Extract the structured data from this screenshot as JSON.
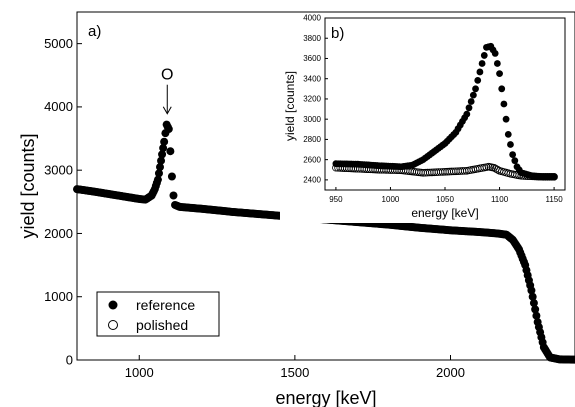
{
  "chart_data": [
    {
      "type": "scatter",
      "panel_label": "a)",
      "xlabel": "energy [keV]",
      "ylabel": "yield [counts]",
      "xlim": [
        800,
        2400
      ],
      "ylim": [
        0,
        5500
      ],
      "xticks": [
        1000,
        1500,
        2000
      ],
      "yticks": [
        0,
        1000,
        2000,
        3000,
        4000,
        5000
      ],
      "annotation": {
        "text": "O",
        "x": 1090,
        "y": 3750
      },
      "legend": {
        "position": "bottom-left",
        "entries": [
          "reference",
          "polished"
        ]
      },
      "series": [
        {
          "name": "reference",
          "marker": "filled-circle",
          "points": [
            [
              800,
              2700
            ],
            [
              850,
              2665
            ],
            [
              900,
              2625
            ],
            [
              950,
              2585
            ],
            [
              1000,
              2545
            ],
            [
              1020,
              2535
            ],
            [
              1040,
              2600
            ],
            [
              1050,
              2700
            ],
            [
              1060,
              2850
            ],
            [
              1070,
              3150
            ],
            [
              1080,
              3450
            ],
            [
              1088,
              3720
            ],
            [
              1095,
              3650
            ],
            [
              1100,
              3300
            ],
            [
              1105,
              2900
            ],
            [
              1110,
              2600
            ],
            [
              1115,
              2450
            ],
            [
              1130,
              2420
            ],
            [
              1200,
              2390
            ],
            [
              1300,
              2340
            ],
            [
              1400,
              2300
            ],
            [
              1500,
              2260
            ],
            [
              1600,
              2220
            ],
            [
              1700,
              2180
            ],
            [
              1800,
              2140
            ],
            [
              1900,
              2090
            ],
            [
              2000,
              2050
            ],
            [
              2100,
              2020
            ],
            [
              2150,
              2000
            ],
            [
              2180,
              1980
            ],
            [
              2200,
              1900
            ],
            [
              2220,
              1750
            ],
            [
              2240,
              1500
            ],
            [
              2260,
              1100
            ],
            [
              2280,
              600
            ],
            [
              2300,
              200
            ],
            [
              2320,
              40
            ],
            [
              2350,
              10
            ],
            [
              2400,
              5
            ]
          ]
        },
        {
          "name": "polished",
          "marker": "open-circle",
          "points": []
        }
      ]
    },
    {
      "type": "scatter",
      "panel_label": "b)",
      "xlabel": "energy [keV]",
      "ylabel": "yield [counts]",
      "xlim": [
        940,
        1160
      ],
      "ylim": [
        2300,
        4000
      ],
      "xticks": [
        950,
        1000,
        1050,
        1100,
        1150
      ],
      "yticks": [
        2400,
        2600,
        2800,
        3000,
        3200,
        3400,
        3600,
        3800,
        4000
      ],
      "series": [
        {
          "name": "reference",
          "marker": "filled-circle",
          "points": [
            [
              950,
              2560
            ],
            [
              970,
              2555
            ],
            [
              990,
              2540
            ],
            [
              1010,
              2530
            ],
            [
              1020,
              2545
            ],
            [
              1030,
              2600
            ],
            [
              1040,
              2680
            ],
            [
              1050,
              2760
            ],
            [
              1060,
              2870
            ],
            [
              1070,
              3050
            ],
            [
              1078,
              3300
            ],
            [
              1084,
              3550
            ],
            [
              1088,
              3710
            ],
            [
              1092,
              3720
            ],
            [
              1096,
              3650
            ],
            [
              1100,
              3450
            ],
            [
              1104,
              3150
            ],
            [
              1108,
              2850
            ],
            [
              1112,
              2650
            ],
            [
              1116,
              2530
            ],
            [
              1120,
              2470
            ],
            [
              1130,
              2440
            ],
            [
              1140,
              2430
            ],
            [
              1150,
              2430
            ]
          ]
        },
        {
          "name": "polished",
          "marker": "open-circle",
          "points": [
            [
              950,
              2520
            ],
            [
              970,
              2510
            ],
            [
              990,
              2500
            ],
            [
              1010,
              2495
            ],
            [
              1030,
              2470
            ],
            [
              1050,
              2480
            ],
            [
              1070,
              2490
            ],
            [
              1080,
              2510
            ],
            [
              1090,
              2530
            ],
            [
              1095,
              2520
            ],
            [
              1100,
              2490
            ],
            [
              1110,
              2460
            ],
            [
              1120,
              2440
            ],
            [
              1140,
              2430
            ],
            [
              1150,
              2430
            ]
          ]
        }
      ]
    }
  ]
}
